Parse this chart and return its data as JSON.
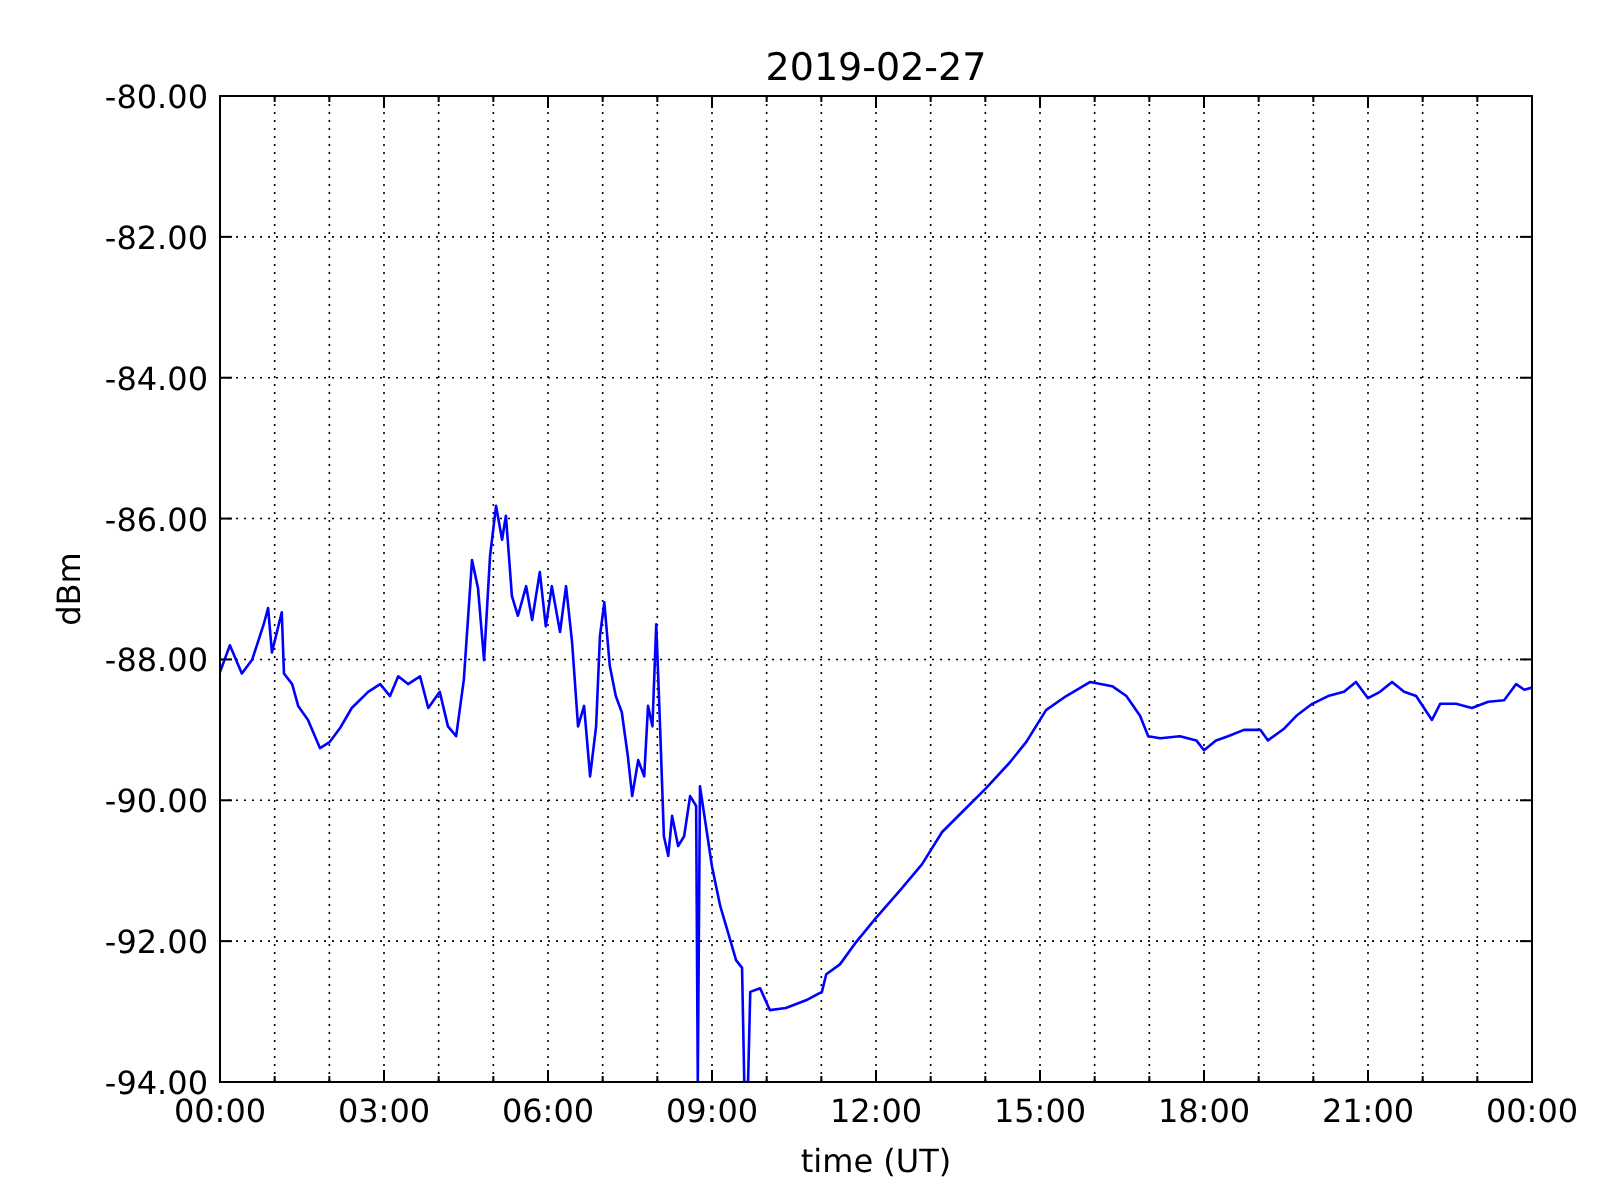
{
  "chart_data": {
    "type": "line",
    "title": "2019-02-27",
    "xlabel": "time (UT)",
    "ylabel": "dBm",
    "x": [
      0,
      0.18,
      0.4,
      0.59,
      0.8,
      0.88,
      0.95,
      1.13,
      1.17,
      1.32,
      1.43,
      1.61,
      1.83,
      2.01,
      2.2,
      2.41,
      2.71,
      2.93,
      3.11,
      3.26,
      3.44,
      3.66,
      3.81,
      4.02,
      4.17,
      4.32,
      4.46,
      4.61,
      4.72,
      4.83,
      4.94,
      5.05,
      5.16,
      5.23,
      5.34,
      5.45,
      5.6,
      5.71,
      5.85,
      5.96,
      6.07,
      6.22,
      6.33,
      6.44,
      6.55,
      6.66,
      6.77,
      6.88,
      6.95,
      7.03,
      7.13,
      7.24,
      7.35,
      7.46,
      7.54,
      7.65,
      7.76,
      7.83,
      7.91,
      7.98,
      8.05,
      8.12,
      8.2,
      8.27,
      8.38,
      8.49,
      8.6,
      8.71,
      8.74,
      8.78,
      8.89,
      9.0,
      9.15,
      9.29,
      9.44,
      9.55,
      9.59,
      9.66,
      9.7,
      9.88,
      10.06,
      10.35,
      10.72,
      11.01,
      11.09,
      11.34,
      11.64,
      12.0,
      12.44,
      12.84,
      13.21,
      13.65,
      14.01,
      14.45,
      14.75,
      15.11,
      15.48,
      15.92,
      16.32,
      16.58,
      16.83,
      16.98,
      17.2,
      17.56,
      17.86,
      18.0,
      18.22,
      18.44,
      18.73,
      19.03,
      19.17,
      19.47,
      19.69,
      19.98,
      20.27,
      20.56,
      20.78,
      21.0,
      21.22,
      21.44,
      21.66,
      21.88,
      22.17,
      22.32,
      22.61,
      22.9,
      23.2,
      23.49,
      23.71,
      23.86,
      24
    ],
    "series": [
      {
        "color": "#0000ff",
        "values": [
          -88.18,
          -87.8,
          -88.2,
          -88.0,
          -87.5,
          -87.27,
          -87.9,
          -87.33,
          -88.2,
          -88.35,
          -88.66,
          -88.86,
          -89.26,
          -89.17,
          -88.97,
          -88.69,
          -88.46,
          -88.35,
          -88.52,
          -88.24,
          -88.35,
          -88.24,
          -88.69,
          -88.46,
          -88.95,
          -89.09,
          -88.29,
          -86.59,
          -86.99,
          -88.01,
          -86.53,
          -85.82,
          -86.3,
          -85.96,
          -87.1,
          -87.38,
          -86.96,
          -87.44,
          -86.76,
          -87.53,
          -86.96,
          -87.61,
          -86.96,
          -87.75,
          -88.95,
          -88.66,
          -89.66,
          -88.95,
          -87.67,
          -87.19,
          -88.09,
          -88.52,
          -88.75,
          -89.37,
          -89.94,
          -89.43,
          -89.66,
          -88.66,
          -88.95,
          -87.5,
          -88.95,
          -90.51,
          -90.79,
          -90.22,
          -90.65,
          -90.51,
          -89.94,
          -90.08,
          -94,
          -89.8,
          -90.37,
          -90.94,
          -91.5,
          -91.87,
          -92.27,
          -92.38,
          -94,
          -94,
          -92.72,
          -92.67,
          -92.98,
          -92.95,
          -92.84,
          -92.72,
          -92.47,
          -92.33,
          -92.01,
          -91.67,
          -91.28,
          -90.91,
          -90.45,
          -90.11,
          -89.83,
          -89.46,
          -89.17,
          -88.72,
          -88.52,
          -88.32,
          -88.38,
          -88.52,
          -88.8,
          -89.09,
          -89.12,
          -89.09,
          -89.15,
          -89.29,
          -89.15,
          -89.09,
          -89.0,
          -89.0,
          -89.15,
          -88.98,
          -88.8,
          -88.63,
          -88.52,
          -88.46,
          -88.32,
          -88.55,
          -88.46,
          -88.32,
          -88.46,
          -88.52,
          -88.86,
          -88.63,
          -88.63,
          -88.69,
          -88.6,
          -88.58,
          -88.35,
          -88.43,
          -88.4
        ]
      }
    ],
    "xlim": [
      0,
      24
    ],
    "xticks": [
      {
        "value": 0,
        "label": "00:00"
      },
      {
        "value": 1,
        "label": null
      },
      {
        "value": 2,
        "label": null
      },
      {
        "value": 3,
        "label": "03:00"
      },
      {
        "value": 4,
        "label": null
      },
      {
        "value": 5,
        "label": null
      },
      {
        "value": 6,
        "label": "06:00"
      },
      {
        "value": 7,
        "label": null
      },
      {
        "value": 8,
        "label": null
      },
      {
        "value": 9,
        "label": "09:00"
      },
      {
        "value": 10,
        "label": null
      },
      {
        "value": 11,
        "label": null
      },
      {
        "value": 12,
        "label": "12:00"
      },
      {
        "value": 13,
        "label": null
      },
      {
        "value": 14,
        "label": null
      },
      {
        "value": 15,
        "label": "15:00"
      },
      {
        "value": 16,
        "label": null
      },
      {
        "value": 17,
        "label": null
      },
      {
        "value": 18,
        "label": "18:00"
      },
      {
        "value": 19,
        "label": null
      },
      {
        "value": 20,
        "label": null
      },
      {
        "value": 21,
        "label": "21:00"
      },
      {
        "value": 22,
        "label": null
      },
      {
        "value": 23,
        "label": null
      },
      {
        "value": 24,
        "label": "00:00"
      }
    ],
    "ylim": [
      -94,
      -80
    ],
    "yticks": [
      {
        "value": -94,
        "label": "-94.00"
      },
      {
        "value": -92,
        "label": "-92.00"
      },
      {
        "value": -90,
        "label": "-90.00"
      },
      {
        "value": -88,
        "label": "-88.00"
      },
      {
        "value": -86,
        "label": "-86.00"
      },
      {
        "value": -84,
        "label": "-84.00"
      },
      {
        "value": -82,
        "label": "-82.00"
      },
      {
        "value": -80,
        "label": "-80.00"
      }
    ],
    "grid": true,
    "line_style": "solid"
  }
}
